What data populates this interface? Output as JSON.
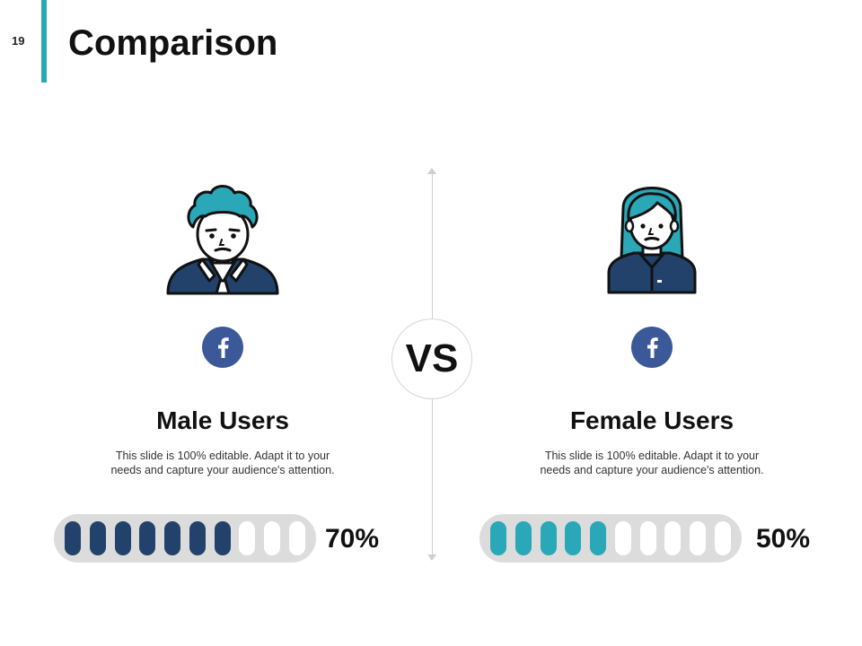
{
  "slide": {
    "number": "19",
    "title": "Comparison",
    "accent_color": "#2aa8b8"
  },
  "center": {
    "vs_label": "VS"
  },
  "male": {
    "title": "Male Users",
    "description_line1": "This slide is 100% editable. Adapt it to your",
    "description_line2": "needs and capture your audience's attention.",
    "percent_label": "70%",
    "filled_segments": 7,
    "total_segments": 10,
    "bar_color": "#22426b",
    "icon": "facebook-icon",
    "avatar": "male-user-avatar"
  },
  "female": {
    "title": "Female Users",
    "description_line1": "This slide is 100% editable. Adapt it to your",
    "description_line2": "needs and capture your audience's attention.",
    "percent_label": "50%",
    "filled_segments": 5,
    "total_segments": 10,
    "bar_color": "#2aa8b8",
    "icon": "facebook-icon",
    "avatar": "female-user-avatar"
  },
  "colors": {
    "facebook": "#3b5898",
    "empty_segment": "#ffffff",
    "track": "#dcdcdc",
    "shirt": "#22426b",
    "hair": "#2aa8b8"
  }
}
